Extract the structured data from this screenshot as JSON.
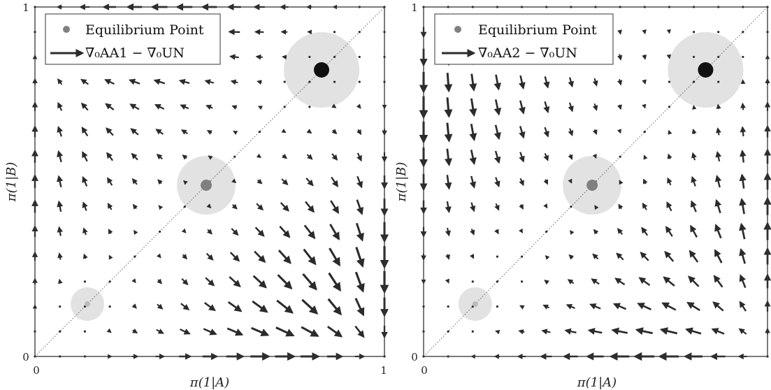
{
  "chart_data": [
    {
      "type": "quiver",
      "xlabel": "π(1|A)",
      "ylabel": "π(1|B)",
      "x_ticks": [
        "0",
        "1"
      ],
      "y_ticks": [
        "0",
        "1"
      ],
      "xlim": [
        0,
        1
      ],
      "ylim": [
        0,
        1
      ],
      "legend": {
        "placement": "top-left",
        "entries": [
          "Equilibrium Point",
          "∇₀AA1 − ∇₀UN"
        ]
      },
      "diagonal_reference_line": true,
      "equilibrium_points": [
        {
          "x": 0.15,
          "y": 0.15,
          "size": "small",
          "shade": "light"
        },
        {
          "x": 0.49,
          "y": 0.49,
          "size": "medium",
          "shade": "medium"
        },
        {
          "x": 0.82,
          "y": 0.82,
          "size": "large",
          "shade": "dark"
        }
      ],
      "field": "AA1"
    },
    {
      "type": "quiver",
      "xlabel": "π(1|A)",
      "ylabel": "π(1|B)",
      "x_ticks": [
        "0",
        "1"
      ],
      "y_ticks": [
        "0",
        "1"
      ],
      "xlim": [
        0,
        1
      ],
      "ylim": [
        0,
        1
      ],
      "legend": {
        "placement": "top-left",
        "entries": [
          "Equilibrium Point",
          "∇₀AA2 − ∇₀UN"
        ]
      },
      "diagonal_reference_line": true,
      "equilibrium_points": [
        {
          "x": 0.15,
          "y": 0.15,
          "size": "small",
          "shade": "light"
        },
        {
          "x": 0.49,
          "y": 0.49,
          "size": "medium",
          "shade": "medium"
        },
        {
          "x": 0.82,
          "y": 0.82,
          "size": "large",
          "shade": "dark"
        }
      ],
      "field": "AA2"
    }
  ],
  "colors": {
    "arrow": "#2b2b2b",
    "axis": "#333333",
    "halo": "#e2e2e2",
    "eq_light": "#bbbbbb",
    "eq_medium": "#808080",
    "eq_dark": "#111111",
    "diagonal": "#666666"
  }
}
